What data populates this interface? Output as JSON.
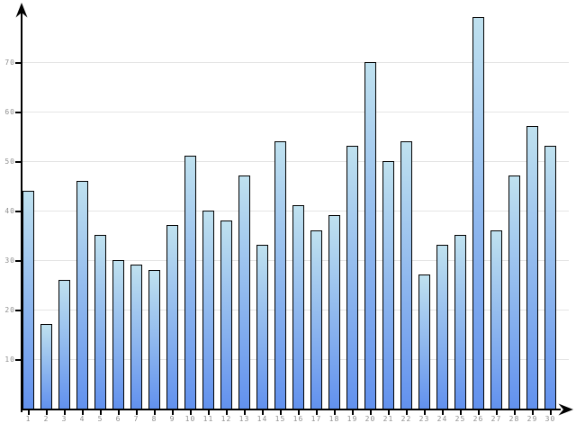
{
  "chart_data": {
    "type": "bar",
    "categories": [
      "1",
      "2",
      "3",
      "4",
      "5",
      "6",
      "7",
      "8",
      "9",
      "10",
      "11",
      "12",
      "13",
      "14",
      "15",
      "16",
      "17",
      "18",
      "19",
      "20",
      "21",
      "22",
      "23",
      "24",
      "25",
      "26",
      "27",
      "28",
      "29",
      "30"
    ],
    "values": [
      44,
      17,
      26,
      46,
      35,
      30,
      29,
      28,
      37,
      51,
      40,
      38,
      47,
      33,
      54,
      41,
      36,
      39,
      53,
      70,
      50,
      54,
      27,
      33,
      35,
      79,
      36,
      47,
      57,
      53
    ],
    "title": "",
    "xlabel": "",
    "ylabel": "",
    "ylim": [
      0,
      80
    ],
    "yticks": [
      10,
      20,
      30,
      40,
      50,
      60,
      70
    ],
    "grid": true,
    "legend": null,
    "colors": {
      "bar_gradient_top": "#bfe1ef",
      "bar_gradient_bottom": "#6291ee",
      "bar_border": "#000000",
      "gridline": "#e4e4e4",
      "axis": "#000000",
      "tick_label": "#8f8f8f",
      "background": "#ffffff"
    }
  }
}
